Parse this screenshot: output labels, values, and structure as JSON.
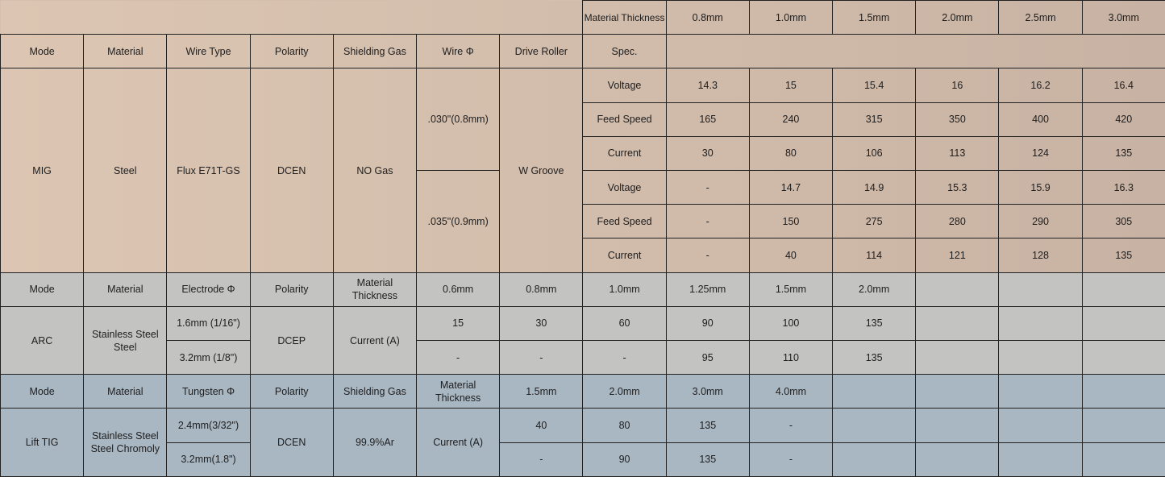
{
  "mig": {
    "thickness_label": "Material Thickness",
    "thicknesses": [
      "0.8mm",
      "1.0mm",
      "1.5mm",
      "2.0mm",
      "2.5mm",
      "3.0mm"
    ],
    "headers": [
      "Mode",
      "Material",
      "Wire Type",
      "Polarity",
      "Shielding Gas",
      "Wire Φ",
      "Drive Roller",
      "Spec."
    ],
    "mode": "MIG",
    "material": "Steel",
    "wire_type": "Flux E71T-GS",
    "polarity": "DCEN",
    "gas": "NO Gas",
    "drive_roller": "W Groove",
    "wires": [
      {
        "diameter": ".030\"(0.8mm)",
        "rows": [
          {
            "spec": "Voltage",
            "values": [
              "14.3",
              "15",
              "15.4",
              "16",
              "16.2",
              "16.4"
            ]
          },
          {
            "spec": "Feed Speed",
            "values": [
              "165",
              "240",
              "315",
              "350",
              "400",
              "420"
            ]
          },
          {
            "spec": "Current",
            "values": [
              "30",
              "80",
              "106",
              "113",
              "124",
              "135"
            ]
          }
        ]
      },
      {
        "diameter": ".035\"(0.9mm)",
        "rows": [
          {
            "spec": "Voltage",
            "values": [
              "-",
              "14.7",
              "14.9",
              "15.3",
              "15.9",
              "16.3"
            ]
          },
          {
            "spec": "Feed Speed",
            "values": [
              "-",
              "150",
              "275",
              "280",
              "290",
              "305"
            ]
          },
          {
            "spec": "Current",
            "values": [
              "-",
              "40",
              "114",
              "121",
              "128",
              "135"
            ]
          }
        ]
      }
    ]
  },
  "arc": {
    "headers": [
      "Mode",
      "Material",
      "Electrode Φ",
      "Polarity",
      "Material Thickness"
    ],
    "thicknesses": [
      "0.6mm",
      "0.8mm",
      "1.0mm",
      "1.25mm",
      "1.5mm",
      "2.0mm"
    ],
    "mode": "ARC",
    "material": "Stainless Steel Steel",
    "polarity": "DCEP",
    "spec": "Current (A)",
    "rows": [
      {
        "electrode": "1.6mm (1/16\")",
        "values": [
          "15",
          "30",
          "60",
          "90",
          "100",
          "135"
        ]
      },
      {
        "electrode": "3.2mm (1/8\")",
        "values": [
          "-",
          "-",
          "-",
          "95",
          "110",
          "135"
        ]
      }
    ]
  },
  "tig": {
    "headers": [
      "Mode",
      "Material",
      "Tungsten Φ",
      "Polarity",
      "Shielding Gas",
      "Material Thickness"
    ],
    "thicknesses": [
      "1.5mm",
      "2.0mm",
      "3.0mm",
      "4.0mm"
    ],
    "mode": "Lift TIG",
    "material": "Stainless Steel Steel Chromoly",
    "polarity": "DCEN",
    "gas": "99.9%Ar",
    "spec": "Current (A)",
    "rows": [
      {
        "tungsten": "2.4mm(3/32\")",
        "values": [
          "40",
          "80",
          "135",
          "-"
        ]
      },
      {
        "tungsten": "3.2mm(1.8\")",
        "values": [
          "-",
          "90",
          "135",
          "-"
        ]
      }
    ]
  }
}
